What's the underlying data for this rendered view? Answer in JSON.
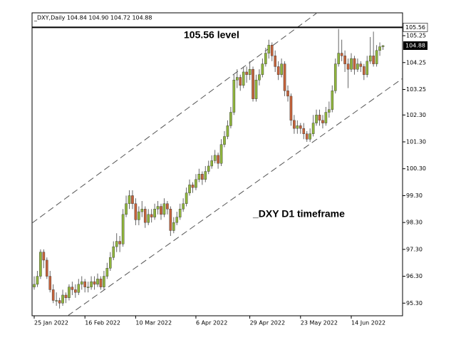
{
  "chart_data": {
    "type": "candlestick",
    "header": "_DXY,Daily  104.84 104.90 104.72 104.88",
    "annotations": [
      "105.56 level",
      "_DXY D1 timeframe"
    ],
    "level_line": 105.56,
    "last_price": 104.88,
    "up_color": "#8fb43c",
    "down_color": "#c4623a",
    "ylim": [
      94.83,
      106.1
    ],
    "yticks": [
      {
        "value": 95.3,
        "label": "95.30"
      },
      {
        "value": 96.3,
        "label": "96.30"
      },
      {
        "value": 97.3,
        "label": "97.30"
      },
      {
        "value": 98.3,
        "label": "98.30"
      },
      {
        "value": 99.3,
        "label": "99.30"
      },
      {
        "value": 100.3,
        "label": "100.30"
      },
      {
        "value": 101.3,
        "label": "101.30"
      },
      {
        "value": 102.3,
        "label": "102.30"
      },
      103.25,
      104.25,
      105.25
    ],
    "categories": [
      "25 Jan 2022",
      null,
      null,
      null,
      null,
      null,
      null,
      null,
      null,
      null,
      null,
      null,
      null,
      null,
      null,
      null,
      "16 Feb 2022",
      null,
      null,
      null,
      null,
      null,
      null,
      null,
      null,
      null,
      null,
      null,
      null,
      null,
      null,
      null,
      "10 Mar 2022",
      null,
      null,
      null,
      null,
      null,
      null,
      null,
      null,
      null,
      null,
      null,
      null,
      null,
      null,
      null,
      null,
      null,
      null,
      "6 Apr 2022",
      null,
      null,
      null,
      null,
      null,
      null,
      null,
      null,
      null,
      null,
      null,
      null,
      null,
      null,
      null,
      null,
      "29 Apr 2022",
      null,
      null,
      null,
      null,
      null,
      null,
      null,
      null,
      null,
      null,
      null,
      null,
      null,
      null,
      null,
      "23 May 2022",
      null,
      null,
      null,
      null,
      null,
      null,
      null,
      null,
      null,
      null,
      null,
      null,
      null,
      null,
      null,
      "14 Jun 2022",
      null,
      null,
      null,
      null,
      null,
      null,
      null,
      null,
      null,
      null
    ],
    "candles": [
      [
        95.9,
        96.3,
        95.8,
        96.0
      ],
      [
        96.0,
        96.5,
        95.9,
        96.3
      ],
      [
        96.3,
        97.3,
        96.2,
        97.2
      ],
      [
        97.2,
        97.3,
        96.6,
        96.9
      ],
      [
        96.9,
        97.0,
        96.2,
        96.3
      ],
      [
        96.3,
        96.5,
        95.7,
        95.8
      ],
      [
        95.8,
        96.0,
        95.3,
        95.4
      ],
      [
        95.4,
        95.7,
        95.2,
        95.4
      ],
      [
        95.4,
        95.5,
        95.1,
        95.3
      ],
      [
        95.3,
        95.8,
        95.2,
        95.6
      ],
      [
        95.6,
        95.7,
        95.3,
        95.5
      ],
      [
        95.5,
        96.0,
        95.4,
        95.9
      ],
      [
        95.9,
        96.1,
        95.6,
        95.8
      ],
      [
        95.8,
        96.0,
        95.5,
        95.7
      ],
      [
        95.7,
        96.2,
        95.6,
        96.0
      ],
      [
        96.0,
        96.3,
        95.8,
        96.1
      ],
      [
        96.1,
        96.2,
        95.7,
        95.9
      ],
      [
        95.9,
        96.1,
        95.7,
        95.9
      ],
      [
        95.9,
        96.3,
        95.8,
        96.1
      ],
      [
        96.1,
        96.3,
        95.8,
        96.0
      ],
      [
        96.0,
        96.4,
        95.9,
        96.2
      ],
      [
        96.2,
        96.3,
        95.8,
        95.9
      ],
      [
        95.9,
        96.5,
        95.8,
        96.3
      ],
      [
        96.3,
        96.8,
        96.2,
        96.6
      ],
      [
        96.6,
        97.2,
        96.5,
        97.0
      ],
      [
        97.0,
        97.6,
        96.9,
        97.4
      ],
      [
        97.4,
        97.9,
        97.2,
        97.6
      ],
      [
        97.6,
        97.8,
        97.2,
        97.5
      ],
      [
        97.5,
        98.8,
        97.4,
        98.6
      ],
      [
        98.6,
        99.3,
        98.5,
        99.0
      ],
      [
        99.0,
        99.5,
        98.8,
        99.3
      ],
      [
        99.3,
        99.5,
        98.8,
        99.0
      ],
      [
        99.0,
        99.2,
        98.2,
        98.4
      ],
      [
        98.4,
        98.9,
        98.2,
        98.7
      ],
      [
        98.7,
        99.1,
        98.5,
        98.8
      ],
      [
        98.8,
        98.9,
        98.1,
        98.3
      ],
      [
        98.3,
        98.8,
        98.2,
        98.6
      ],
      [
        98.6,
        98.8,
        98.3,
        98.5
      ],
      [
        98.5,
        99.0,
        98.4,
        98.8
      ],
      [
        98.8,
        99.1,
        98.6,
        98.9
      ],
      [
        98.9,
        99.0,
        98.4,
        98.6
      ],
      [
        98.6,
        99.2,
        98.5,
        99.0
      ],
      [
        99.0,
        99.1,
        98.6,
        98.8
      ],
      [
        98.8,
        98.9,
        97.8,
        98.0
      ],
      [
        98.0,
        98.5,
        97.9,
        98.3
      ],
      [
        98.3,
        98.7,
        98.2,
        98.5
      ],
      [
        98.5,
        99.0,
        98.4,
        98.8
      ],
      [
        98.8,
        99.2,
        98.7,
        99.0
      ],
      [
        99.0,
        99.6,
        98.9,
        99.4
      ],
      [
        99.4,
        99.9,
        99.3,
        99.7
      ],
      [
        99.7,
        99.8,
        99.4,
        99.6
      ],
      [
        99.6,
        100.1,
        99.5,
        99.9
      ],
      [
        99.9,
        100.3,
        99.8,
        100.1
      ],
      [
        100.1,
        100.2,
        99.7,
        99.9
      ],
      [
        99.9,
        100.4,
        99.8,
        100.2
      ],
      [
        100.2,
        100.6,
        100.1,
        100.4
      ],
      [
        100.4,
        100.8,
        100.3,
        100.6
      ],
      [
        100.6,
        101.0,
        100.5,
        100.8
      ],
      [
        100.8,
        100.9,
        100.3,
        100.5
      ],
      [
        100.5,
        101.4,
        100.4,
        101.2
      ],
      [
        101.2,
        101.7,
        101.1,
        101.5
      ],
      [
        101.5,
        102.1,
        101.4,
        101.9
      ],
      [
        101.9,
        102.6,
        101.8,
        102.4
      ],
      [
        102.4,
        103.8,
        102.3,
        103.6
      ],
      [
        103.6,
        104.0,
        103.3,
        103.7
      ],
      [
        103.7,
        103.8,
        103.2,
        103.4
      ],
      [
        103.4,
        104.1,
        103.3,
        103.9
      ],
      [
        103.9,
        104.1,
        103.5,
        103.8
      ],
      [
        103.8,
        104.3,
        103.6,
        104.0
      ],
      [
        104.0,
        104.1,
        102.8,
        102.9
      ],
      [
        102.9,
        103.8,
        102.8,
        103.6
      ],
      [
        103.6,
        104.0,
        103.4,
        103.8
      ],
      [
        103.8,
        104.4,
        103.7,
        104.2
      ],
      [
        104.2,
        104.8,
        104.1,
        104.6
      ],
      [
        104.6,
        105.1,
        104.4,
        104.9
      ],
      [
        104.9,
        105.0,
        104.3,
        104.5
      ],
      [
        104.5,
        104.7,
        103.9,
        104.1
      ],
      [
        104.1,
        104.3,
        103.6,
        103.8
      ],
      [
        103.8,
        104.4,
        103.7,
        104.2
      ],
      [
        104.2,
        104.3,
        103.0,
        103.2
      ],
      [
        103.2,
        103.4,
        102.8,
        103.0
      ],
      [
        103.0,
        103.1,
        101.9,
        102.1
      ],
      [
        102.1,
        102.3,
        101.6,
        101.8
      ],
      [
        101.8,
        102.1,
        101.6,
        101.9
      ],
      [
        101.9,
        102.0,
        101.6,
        101.8
      ],
      [
        101.8,
        102.0,
        101.4,
        101.6
      ],
      [
        101.6,
        101.7,
        101.3,
        101.4
      ],
      [
        101.4,
        101.8,
        101.3,
        101.6
      ],
      [
        101.6,
        102.3,
        101.5,
        102.0
      ],
      [
        102.0,
        102.5,
        101.9,
        102.3
      ],
      [
        102.3,
        102.5,
        101.9,
        102.1
      ],
      [
        102.1,
        102.3,
        101.8,
        102.0
      ],
      [
        102.0,
        102.6,
        101.9,
        102.4
      ],
      [
        102.4,
        102.8,
        102.2,
        102.5
      ],
      [
        102.5,
        103.4,
        102.4,
        103.2
      ],
      [
        103.2,
        104.4,
        103.1,
        104.2
      ],
      [
        104.2,
        105.5,
        104.1,
        104.6
      ],
      [
        104.6,
        105.1,
        104.3,
        104.5
      ],
      [
        104.5,
        104.7,
        103.9,
        104.2
      ],
      [
        104.2,
        104.4,
        103.3,
        104.0
      ],
      [
        104.0,
        104.6,
        103.9,
        104.4
      ],
      [
        104.4,
        104.5,
        103.8,
        104.0
      ],
      [
        104.0,
        104.4,
        103.9,
        104.2
      ],
      [
        104.2,
        104.3,
        103.9,
        104.1
      ],
      [
        104.1,
        104.2,
        103.6,
        103.8
      ],
      [
        103.8,
        104.5,
        103.7,
        104.3
      ],
      [
        104.3,
        105.2,
        104.2,
        104.5
      ],
      [
        104.5,
        105.4,
        104.1,
        104.2
      ],
      [
        104.2,
        104.9,
        104.1,
        104.7
      ],
      [
        104.7,
        105.0,
        104.5,
        104.84
      ],
      [
        104.84,
        104.9,
        104.72,
        104.88
      ]
    ]
  }
}
